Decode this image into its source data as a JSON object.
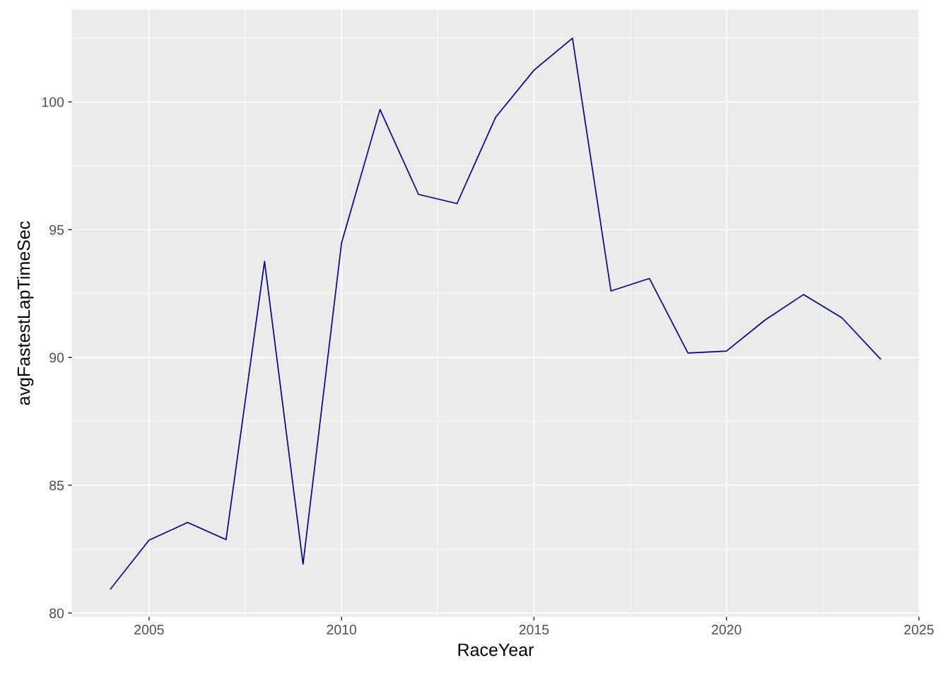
{
  "chart_data": {
    "type": "line",
    "xlabel": "RaceYear",
    "ylabel": "avgFastestLapTimeSec",
    "x": [
      2004,
      2005,
      2006,
      2007,
      2008,
      2009,
      2010,
      2011,
      2012,
      2013,
      2014,
      2015,
      2016,
      2017,
      2018,
      2019,
      2020,
      2021,
      2022,
      2023,
      2024
    ],
    "series": [
      {
        "color": "#00008b",
        "values": [
          80.94,
          82.85,
          83.54,
          82.87,
          93.76,
          81.91,
          94.48,
          99.7,
          96.38,
          96.02,
          99.39,
          101.24,
          102.49,
          92.6,
          93.09,
          90.17,
          90.25,
          91.46,
          92.46,
          91.55,
          89.94
        ]
      }
    ],
    "xlim": [
      2003,
      2025
    ],
    "xticks": [
      2005,
      2010,
      2015,
      2020,
      2025
    ],
    "ylim": [
      79.86,
      103.6
    ],
    "yticks": [
      80,
      85,
      90,
      95,
      100
    ],
    "grid": true,
    "marker": "none",
    "line_style": "solid"
  }
}
